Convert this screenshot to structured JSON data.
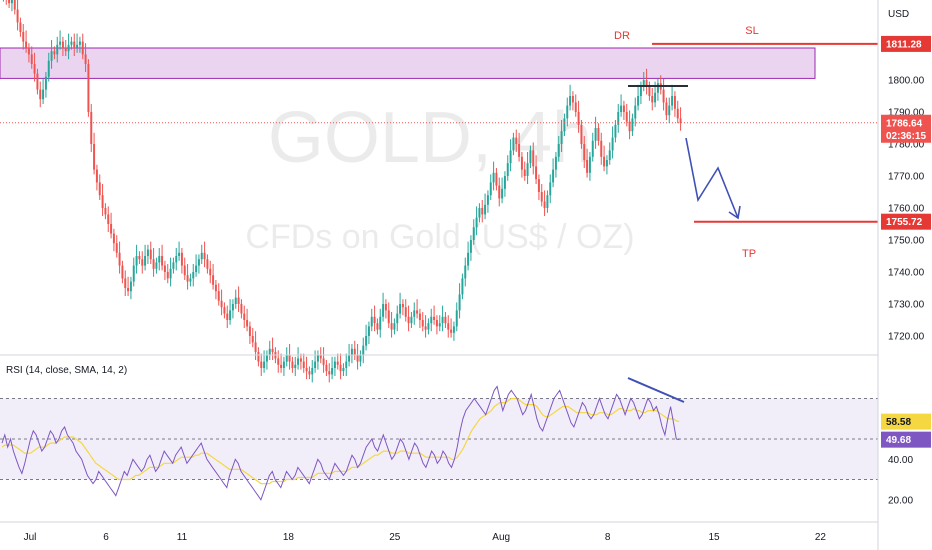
{
  "chart_data": {
    "type": "candlestick",
    "title": "GOLD, 4h",
    "subtitle": "CFDs on Gold (US$ / OZ)",
    "currency": "USD",
    "price_axis": {
      "ylim": [
        1715,
        1825
      ],
      "ticks": [
        "1720.00",
        "1730.00",
        "1740.00",
        "1750.00",
        "1760.00",
        "1770.00",
        "1780.00",
        "1790.00",
        "1800.00"
      ]
    },
    "x_ticks": [
      {
        "label": "Jul",
        "pos": 0.0
      },
      {
        "label": "6",
        "pos": 5.0
      },
      {
        "label": "11",
        "pos": 10.0
      },
      {
        "label": "18",
        "pos": 17.0
      },
      {
        "label": "25",
        "pos": 24.0
      },
      {
        "label": "Aug",
        "pos": 31.0
      },
      {
        "label": "8",
        "pos": 38.0
      },
      {
        "label": "15",
        "pos": 45.0
      },
      {
        "label": "22",
        "pos": 52.0
      }
    ],
    "current_price": {
      "value": 1786.64,
      "label": "1786.64",
      "countdown": "02:36:15"
    },
    "levels": [
      {
        "name": "SL",
        "value": 1811.28,
        "label": "1811.28"
      },
      {
        "name": "TP",
        "value": 1755.72,
        "label": "1755.72"
      }
    ],
    "zone": {
      "low": 1800.5,
      "high": 1810.0,
      "color": "#9c27b0"
    },
    "annotations": [
      {
        "text": "DR",
        "color": "#e53935"
      },
      {
        "text": "SL",
        "color": "#e53935"
      },
      {
        "text": "TP",
        "color": "#e53935"
      }
    ],
    "price_series_close": [
      1828,
      1826,
      1824,
      1825,
      1822,
      1818,
      1815,
      1812,
      1810,
      1808,
      1805,
      1802,
      1797,
      1794,
      1797,
      1801,
      1806,
      1809,
      1808,
      1811,
      1812,
      1810,
      1809,
      1811,
      1812,
      1810,
      1811,
      1812,
      1808,
      1805,
      1790,
      1780,
      1772,
      1768,
      1764,
      1760,
      1758,
      1755,
      1752,
      1749,
      1746,
      1742,
      1738,
      1735,
      1734,
      1737,
      1742,
      1745,
      1744,
      1742,
      1745,
      1747,
      1744,
      1741,
      1743,
      1745,
      1742,
      1740,
      1738,
      1741,
      1743,
      1745,
      1746,
      1742,
      1739,
      1737,
      1738,
      1740,
      1742,
      1744,
      1746,
      1744,
      1741,
      1739,
      1736,
      1734,
      1731,
      1729,
      1727,
      1725,
      1728,
      1730,
      1732,
      1730,
      1727,
      1725,
      1723,
      1720,
      1718,
      1715,
      1712,
      1710,
      1712,
      1714,
      1716,
      1715,
      1713,
      1711,
      1710,
      1712,
      1714,
      1712,
      1710,
      1711,
      1713,
      1712,
      1710,
      1709,
      1708,
      1710,
      1712,
      1714,
      1713,
      1711,
      1709,
      1708,
      1710,
      1712,
      1711,
      1709,
      1710,
      1712,
      1714,
      1716,
      1714,
      1712,
      1714,
      1717,
      1720,
      1723,
      1726,
      1724,
      1722,
      1726,
      1730,
      1728,
      1724,
      1722,
      1724,
      1727,
      1730,
      1729,
      1726,
      1724,
      1726,
      1728,
      1727,
      1725,
      1723,
      1722,
      1724,
      1726,
      1725,
      1723,
      1724,
      1726,
      1724,
      1722,
      1721,
      1723,
      1728,
      1733,
      1738,
      1742,
      1746,
      1750,
      1754,
      1757,
      1760,
      1758,
      1761,
      1764,
      1768,
      1771,
      1767,
      1763,
      1766,
      1770,
      1774,
      1778,
      1782,
      1780,
      1776,
      1772,
      1770,
      1774,
      1778,
      1773,
      1769,
      1765,
      1762,
      1760,
      1764,
      1768,
      1772,
      1776,
      1780,
      1784,
      1788,
      1792,
      1795,
      1793,
      1790,
      1786,
      1780,
      1775,
      1771,
      1776,
      1781,
      1785,
      1781,
      1776,
      1773,
      1775,
      1778,
      1782,
      1786,
      1790,
      1792,
      1790,
      1787,
      1784,
      1788,
      1792,
      1795,
      1798,
      1800,
      1798,
      1795,
      1793,
      1796,
      1799,
      1797,
      1793,
      1789,
      1792,
      1795,
      1791,
      1788,
      1786.64
    ],
    "price_series_open": [
      1826,
      1828,
      1826,
      1824,
      1825,
      1822,
      1818,
      1815,
      1812,
      1810,
      1808,
      1805,
      1802,
      1797,
      1794,
      1797,
      1801,
      1806,
      1809,
      1808,
      1811,
      1812,
      1810,
      1809,
      1811,
      1812,
      1810,
      1811,
      1812,
      1808,
      1805,
      1790,
      1780,
      1772,
      1768,
      1764,
      1760,
      1758,
      1755,
      1752,
      1749,
      1746,
      1742,
      1738,
      1735,
      1734,
      1737,
      1742,
      1745,
      1744,
      1742,
      1745,
      1747,
      1744,
      1741,
      1743,
      1745,
      1742,
      1740,
      1738,
      1741,
      1743,
      1745,
      1746,
      1742,
      1739,
      1737,
      1738,
      1740,
      1742,
      1744,
      1746,
      1744,
      1741,
      1739,
      1736,
      1734,
      1731,
      1729,
      1727,
      1725,
      1728,
      1730,
      1732,
      1730,
      1727,
      1725,
      1723,
      1720,
      1718,
      1715,
      1712,
      1710,
      1712,
      1714,
      1716,
      1715,
      1713,
      1711,
      1710,
      1712,
      1714,
      1712,
      1710,
      1711,
      1713,
      1712,
      1710,
      1709,
      1708,
      1710,
      1712,
      1714,
      1713,
      1711,
      1709,
      1708,
      1710,
      1712,
      1711,
      1709,
      1710,
      1712,
      1714,
      1716,
      1714,
      1712,
      1714,
      1717,
      1720,
      1723,
      1726,
      1724,
      1722,
      1726,
      1730,
      1728,
      1724,
      1722,
      1724,
      1727,
      1730,
      1729,
      1726,
      1724,
      1726,
      1728,
      1727,
      1725,
      1723,
      1722,
      1724,
      1726,
      1725,
      1723,
      1724,
      1726,
      1724,
      1722,
      1721,
      1723,
      1728,
      1733,
      1738,
      1742,
      1746,
      1750,
      1754,
      1757,
      1760,
      1758,
      1761,
      1764,
      1768,
      1771,
      1767,
      1763,
      1766,
      1770,
      1774,
      1778,
      1782,
      1780,
      1776,
      1772,
      1770,
      1774,
      1778,
      1773,
      1769,
      1765,
      1762,
      1760,
      1764,
      1768,
      1772,
      1776,
      1780,
      1784,
      1788,
      1792,
      1795,
      1793,
      1790,
      1786,
      1780,
      1775,
      1771,
      1776,
      1781,
      1785,
      1781,
      1776,
      1773,
      1775,
      1778,
      1782,
      1786,
      1790,
      1792,
      1790,
      1787,
      1784,
      1788,
      1792,
      1795,
      1798,
      1800,
      1798,
      1795,
      1793,
      1796,
      1799,
      1797,
      1793,
      1789,
      1792,
      1795,
      1791,
      1788
    ],
    "rsi": {
      "label": "RSI (14, close, SMA, 14, 2)",
      "ylim": [
        10,
        90
      ],
      "ticks": [
        "20.00",
        "40.00"
      ],
      "band": [
        30,
        70
      ],
      "middle": 50,
      "rsi_value": {
        "value": 49.68,
        "label": "49.68"
      },
      "sma_value": {
        "value": 58.58,
        "label": "58.58"
      },
      "values": [
        48,
        52,
        46,
        50,
        44,
        40,
        36,
        33,
        38,
        44,
        50,
        54,
        52,
        48,
        44,
        46,
        50,
        54,
        52,
        48,
        50,
        54,
        56,
        52,
        50,
        48,
        44,
        42,
        40,
        36,
        32,
        30,
        28,
        30,
        34,
        32,
        30,
        28,
        26,
        24,
        22,
        26,
        30,
        34,
        32,
        36,
        40,
        38,
        36,
        34,
        36,
        40,
        42,
        38,
        34,
        36,
        40,
        44,
        42,
        40,
        38,
        42,
        44,
        46,
        42,
        38,
        40,
        42,
        44,
        46,
        48,
        44,
        40,
        38,
        36,
        34,
        32,
        30,
        28,
        26,
        32,
        36,
        40,
        38,
        34,
        32,
        30,
        28,
        26,
        24,
        22,
        20,
        24,
        28,
        32,
        34,
        30,
        28,
        26,
        30,
        34,
        32,
        30,
        32,
        36,
        34,
        32,
        30,
        28,
        32,
        36,
        40,
        38,
        34,
        32,
        30,
        34,
        38,
        36,
        34,
        32,
        34,
        38,
        42,
        40,
        36,
        38,
        42,
        46,
        48,
        50,
        46,
        44,
        48,
        52,
        48,
        44,
        40,
        42,
        46,
        50,
        48,
        44,
        40,
        44,
        48,
        46,
        42,
        38,
        36,
        40,
        44,
        42,
        38,
        40,
        44,
        42,
        38,
        36,
        40,
        46,
        54,
        60,
        64,
        66,
        68,
        70,
        68,
        66,
        64,
        62,
        66,
        70,
        74,
        76,
        70,
        64,
        68,
        72,
        74,
        72,
        70,
        66,
        62,
        64,
        68,
        72,
        66,
        60,
        56,
        54,
        58,
        62,
        66,
        70,
        72,
        74,
        70,
        66,
        62,
        58,
        56,
        60,
        64,
        68,
        66,
        62,
        60,
        62,
        66,
        70,
        66,
        62,
        60,
        64,
        68,
        72,
        70,
        66,
        62,
        66,
        70,
        68,
        64,
        60,
        62,
        66,
        70,
        68,
        64,
        66,
        62,
        56,
        52,
        60,
        66,
        58,
        50,
        49.68
      ],
      "sma": [
        46,
        47,
        47,
        47,
        47,
        46,
        45,
        44,
        43,
        43,
        43,
        44,
        45,
        46,
        46,
        46,
        47,
        48,
        48,
        48,
        49,
        50,
        51,
        51,
        51,
        51,
        50,
        49,
        48,
        46,
        44,
        42,
        40,
        38,
        37,
        36,
        35,
        34,
        33,
        32,
        31,
        30,
        30,
        30,
        30,
        30,
        31,
        32,
        32,
        33,
        34,
        35,
        36,
        36,
        36,
        36,
        37,
        38,
        38,
        38,
        38,
        39,
        40,
        41,
        41,
        41,
        41,
        41,
        42,
        42,
        43,
        43,
        43,
        42,
        41,
        40,
        39,
        38,
        37,
        36,
        35,
        35,
        35,
        35,
        35,
        34,
        33,
        32,
        31,
        30,
        29,
        28,
        28,
        28,
        28,
        29,
        29,
        29,
        29,
        29,
        30,
        30,
        30,
        30,
        31,
        31,
        31,
        31,
        31,
        31,
        32,
        33,
        33,
        33,
        33,
        33,
        33,
        34,
        34,
        34,
        34,
        34,
        35,
        36,
        36,
        36,
        37,
        38,
        39,
        40,
        41,
        42,
        42,
        43,
        44,
        44,
        44,
        43,
        43,
        43,
        44,
        44,
        44,
        43,
        43,
        43,
        43,
        43,
        42,
        41,
        41,
        41,
        41,
        41,
        41,
        41,
        41,
        41,
        40,
        40,
        41,
        43,
        45,
        48,
        51,
        54,
        56,
        58,
        60,
        61,
        62,
        63,
        64,
        66,
        67,
        68,
        68,
        68,
        69,
        70,
        70,
        70,
        69,
        68,
        67,
        67,
        67,
        67,
        66,
        64,
        62,
        61,
        61,
        62,
        63,
        64,
        65,
        66,
        66,
        66,
        65,
        64,
        63,
        63,
        63,
        63,
        63,
        62,
        62,
        62,
        63,
        63,
        63,
        62,
        62,
        63,
        64,
        65,
        65,
        64,
        64,
        64,
        65,
        64,
        64,
        63,
        63,
        64,
        64,
        64,
        64,
        63,
        62,
        61,
        60,
        60,
        60,
        59,
        58.58
      ]
    },
    "grid": false,
    "legend": "none"
  }
}
